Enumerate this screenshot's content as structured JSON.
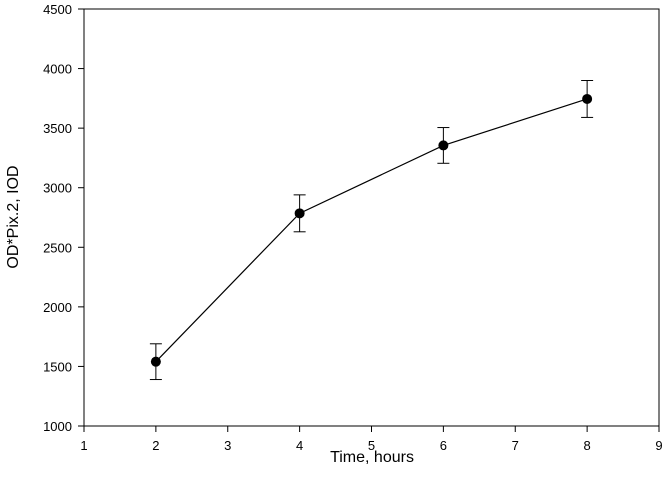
{
  "chart_data": {
    "type": "line",
    "title": "",
    "xlabel": "Time, hours",
    "ylabel": "OD*Pix.2, IOD",
    "xlim": [
      1,
      9
    ],
    "ylim": [
      1000,
      4500
    ],
    "x_ticks": [
      1,
      2,
      3,
      4,
      5,
      6,
      7,
      8,
      9
    ],
    "y_ticks": [
      1000,
      1500,
      2000,
      2500,
      3000,
      3500,
      4000,
      4500
    ],
    "grid": false,
    "legend": "none",
    "series": [
      {
        "x": [
          2,
          4,
          6,
          8
        ],
        "y": [
          1540,
          2785,
          3355,
          3745
        ],
        "error": [
          150,
          155,
          150,
          155
        ],
        "marker": "filled-circle",
        "color": "#000000"
      }
    ]
  }
}
